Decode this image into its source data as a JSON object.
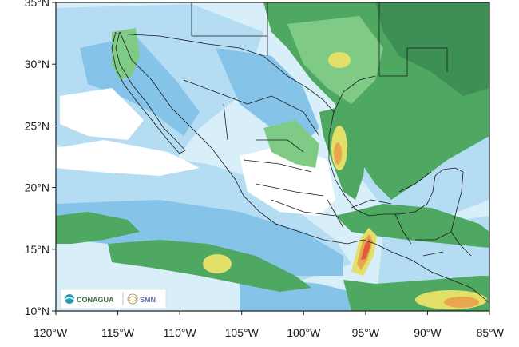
{
  "map": {
    "lat_ticks": [
      {
        "lat": 35,
        "label": "35°N"
      },
      {
        "lat": 30,
        "label": "30°N"
      },
      {
        "lat": 25,
        "label": "25°N"
      },
      {
        "lat": 20,
        "label": "20°N"
      },
      {
        "lat": 15,
        "label": "15°N"
      },
      {
        "lat": 10,
        "label": "10°N"
      }
    ],
    "lon_ticks": [
      {
        "lon": -120,
        "label": "120°W"
      },
      {
        "lon": -115,
        "label": "115°W"
      },
      {
        "lon": -110,
        "label": "110°W"
      },
      {
        "lon": -105,
        "label": "105°W"
      },
      {
        "lon": -100,
        "label": "100°W"
      },
      {
        "lon": -95,
        "label": "95°W"
      },
      {
        "lon": -90,
        "label": "90°W"
      },
      {
        "lon": -85,
        "label": "85°W"
      }
    ],
    "lon_range": [
      -120,
      -85
    ],
    "lat_range": [
      10,
      35
    ],
    "field_colors": {
      "white": "#ffffff",
      "very_light_blue": "#d8eef8",
      "light_blue": "#b4dcf2",
      "medium_blue": "#86c3e8",
      "light_green": "#7fcb86",
      "green": "#4fa861",
      "dark_green": "#3e8f55",
      "yellow": "#e3e06a",
      "orange": "#e9a64f",
      "red": "#e05a3b"
    }
  },
  "logos": {
    "conagua": "CONAGUA",
    "smn": "SMN"
  }
}
